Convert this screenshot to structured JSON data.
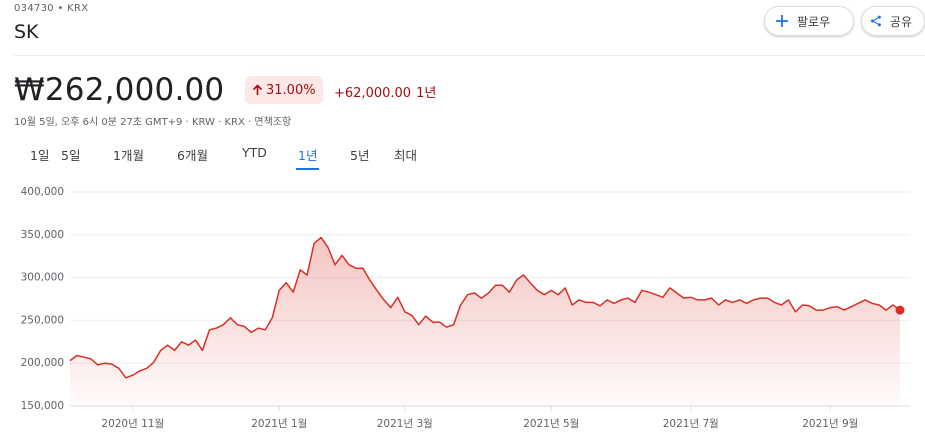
{
  "header": {
    "ticker": "034730 • KRX",
    "name": "SK",
    "follow": "팔로우",
    "share": "공유"
  },
  "quote": {
    "price": "₩262,000.00",
    "change_percent": "31.00%",
    "change": "+62,000.00",
    "change_period": "1년",
    "meta": "10월 5일, 오후 6시 0분 27초 GMT+9 · KRW · KRX · 면책조항"
  },
  "tabs": {
    "items": [
      "1일",
      "5일",
      "1개월",
      "6개월",
      "YTD",
      "1년",
      "5년",
      "최대"
    ],
    "selected": 5
  },
  "chart_data": {
    "type": "line",
    "color": "#d93025",
    "grid": true,
    "ylim": [
      150000,
      400000
    ],
    "yticks": [
      {
        "value": 150000,
        "label": "150,000"
      },
      {
        "value": 200000,
        "label": "200,000"
      },
      {
        "value": 250000,
        "label": "250,000"
      },
      {
        "value": 300000,
        "label": "300,000"
      },
      {
        "value": 350000,
        "label": "350,000"
      },
      {
        "value": 400000,
        "label": "400,000"
      }
    ],
    "categories": [
      null,
      null,
      null,
      null,
      null,
      null,
      null,
      null,
      null,
      "2020년 11월",
      null,
      null,
      null,
      null,
      null,
      null,
      null,
      null,
      null,
      null,
      null,
      null,
      null,
      null,
      null,
      null,
      null,
      null,
      null,
      null,
      "2021년 1월",
      null,
      null,
      null,
      null,
      null,
      null,
      null,
      null,
      null,
      null,
      null,
      null,
      null,
      null,
      null,
      null,
      null,
      "2021년 3월",
      null,
      null,
      null,
      null,
      null,
      null,
      null,
      null,
      null,
      null,
      null,
      null,
      null,
      null,
      null,
      null,
      null,
      null,
      null,
      null,
      "2021년 5월",
      null,
      null,
      null,
      null,
      null,
      null,
      null,
      null,
      null,
      null,
      null,
      null,
      null,
      null,
      null,
      null,
      null,
      null,
      null,
      "2021년 7월",
      null,
      null,
      null,
      null,
      null,
      null,
      null,
      null,
      null,
      null,
      null,
      null,
      null,
      null,
      null,
      null,
      null,
      null,
      null,
      "2021년 9월",
      null,
      null,
      null,
      null,
      null,
      null,
      null,
      null,
      null,
      null
    ],
    "values": [
      203000,
      209000,
      207000,
      205000,
      198000,
      200000,
      199000,
      194000,
      183000,
      186000,
      191000,
      194000,
      201000,
      215000,
      221000,
      215000,
      225000,
      221000,
      227000,
      215000,
      239000,
      241000,
      245000,
      253000,
      245000,
      243000,
      236000,
      241000,
      239000,
      253000,
      285000,
      294000,
      283000,
      309000,
      303000,
      340000,
      347000,
      335000,
      315000,
      326000,
      315000,
      311000,
      311000,
      297000,
      285000,
      274000,
      265000,
      277000,
      260000,
      256000,
      245000,
      255000,
      248000,
      248000,
      242000,
      245000,
      268000,
      280000,
      282000,
      276000,
      282000,
      291000,
      291000,
      283000,
      297000,
      303000,
      294000,
      285000,
      280000,
      285000,
      280000,
      288000,
      268000,
      274000,
      271000,
      271000,
      267000,
      274000,
      270000,
      274000,
      276000,
      271000,
      285000,
      283000,
      280000,
      277000,
      288000,
      282000,
      276000,
      277000,
      274000,
      274000,
      276000,
      268000,
      274000,
      271000,
      274000,
      270000,
      274000,
      276000,
      276000,
      271000,
      268000,
      274000,
      260000,
      268000,
      267000,
      262000,
      262000,
      265000,
      266000,
      262000,
      266000,
      270000,
      274000,
      270000,
      268000,
      262000,
      268000,
      262000
    ]
  }
}
